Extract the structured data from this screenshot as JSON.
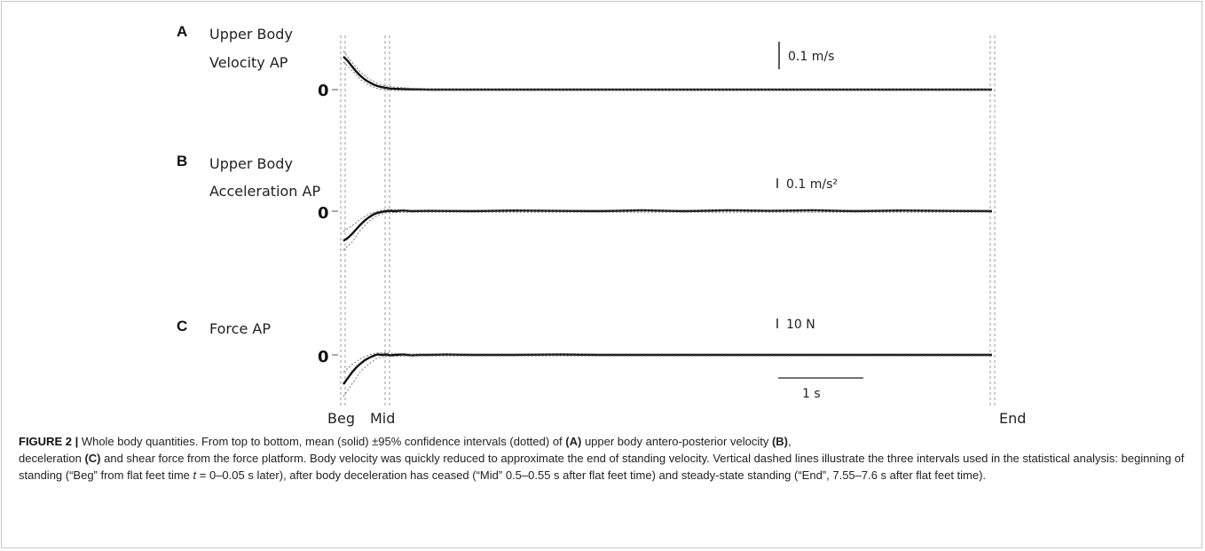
{
  "figure": {
    "x_markers": [
      "Beg",
      "Mid",
      "End"
    ],
    "zero_label": "0",
    "time_scalebar_label": "1 s"
  },
  "chart_data": [
    {
      "type": "line",
      "panel": "A",
      "title_lines": [
        "Upper Body",
        "Velocity AP"
      ],
      "scale_bar_label": "0.1 m/s",
      "x_unit": "s",
      "xlim": [
        0,
        7.6
      ],
      "series": [
        {
          "name": "",
          "style": "solid mean",
          "x": [
            0,
            0.05,
            0.1,
            0.15,
            0.2,
            0.25,
            0.3,
            0.35,
            0.4,
            0.45,
            0.5,
            0.55,
            0.6,
            0.7,
            0.8,
            0.9,
            1.0,
            1.5,
            2.0,
            3.0,
            4.0,
            5.0,
            6.0,
            7.0,
            7.6
          ],
          "y": [
            0.12,
            0.105,
            0.085,
            0.066,
            0.05,
            0.037,
            0.027,
            0.019,
            0.013,
            0.009,
            0.006,
            0.004,
            0.003,
            0.002,
            0.001,
            0.001,
            0.0,
            0.0,
            0.0,
            0.0,
            0.0,
            0.0,
            0.0,
            0.0,
            0.0
          ]
        },
        {
          "name": "",
          "style": "dotted 95% CI",
          "x": [
            0,
            0.1,
            0.2,
            0.3,
            0.4,
            0.5,
            0.6,
            0.8,
            1.0,
            7.6
          ],
          "y_upper": [
            0.14,
            0.1,
            0.064,
            0.038,
            0.022,
            0.013,
            0.009,
            0.005,
            0.003,
            0.003
          ],
          "y_lower": [
            0.1,
            0.07,
            0.036,
            0.016,
            0.004,
            -0.001,
            -0.003,
            -0.003,
            -0.003,
            -0.003
          ]
        }
      ]
    },
    {
      "type": "line",
      "panel": "B",
      "title_lines": [
        "Upper Body",
        "Acceleration AP"
      ],
      "scale_bar_label": "0.1 m/s²",
      "x_unit": "s",
      "xlim": [
        0,
        7.6
      ],
      "series": [
        {
          "name": "",
          "style": "solid mean",
          "x": [
            0,
            0.05,
            0.1,
            0.15,
            0.2,
            0.25,
            0.3,
            0.35,
            0.4,
            0.45,
            0.5,
            0.55,
            0.6,
            0.7,
            0.8,
            1.0,
            1.5,
            2.0,
            3.0,
            3.5,
            4.0,
            4.5,
            5.0,
            5.5,
            6.0,
            6.5,
            7.0,
            7.6
          ],
          "y": [
            -0.88,
            -0.8,
            -0.68,
            -0.54,
            -0.4,
            -0.28,
            -0.18,
            -0.1,
            -0.05,
            -0.02,
            0.0,
            0.01,
            0.0,
            0.02,
            0.0,
            0.01,
            0.0,
            0.02,
            0.0,
            0.03,
            0.0,
            0.03,
            0.01,
            0.03,
            0.0,
            0.02,
            0.01,
            0.0
          ]
        },
        {
          "name": "",
          "style": "dotted 95% CI",
          "x": [
            0,
            0.1,
            0.2,
            0.3,
            0.4,
            0.5,
            0.6,
            0.8,
            1.0,
            7.6
          ],
          "y_upper": [
            -0.6,
            -0.44,
            -0.24,
            -0.08,
            0.0,
            0.05,
            0.05,
            0.03,
            0.03,
            0.03
          ],
          "y_lower": [
            -1.15,
            -0.92,
            -0.56,
            -0.3,
            -0.12,
            -0.05,
            -0.04,
            -0.03,
            -0.03,
            -0.03
          ]
        }
      ]
    },
    {
      "type": "line",
      "panel": "C",
      "title_lines": [
        "Force AP"
      ],
      "scale_bar_label": "10 N",
      "x_unit": "s",
      "xlim": [
        0,
        7.6
      ],
      "series": [
        {
          "name": "",
          "style": "solid mean",
          "x": [
            0,
            0.05,
            0.1,
            0.15,
            0.2,
            0.25,
            0.3,
            0.35,
            0.4,
            0.45,
            0.5,
            0.55,
            0.6,
            0.7,
            0.8,
            0.9,
            1.0,
            1.2,
            1.5,
            2.0,
            2.5,
            3.0,
            4.0,
            5.0,
            6.0,
            7.0,
            7.6
          ],
          "y": [
            -60,
            -48,
            -36,
            -26,
            -18,
            -11,
            -6,
            -2,
            1,
            0,
            1,
            -1,
            0,
            1,
            -1,
            0,
            0,
            1,
            0,
            0,
            1,
            0,
            0,
            0,
            0,
            0,
            0
          ]
        },
        {
          "name": "",
          "style": "dotted 95% CI",
          "x": [
            0,
            0.1,
            0.2,
            0.3,
            0.4,
            0.5,
            0.6,
            0.8,
            1.0,
            7.6
          ],
          "y_upper": [
            -35,
            -20,
            -8,
            0,
            4,
            4,
            3,
            2,
            2,
            2
          ],
          "y_lower": [
            -85,
            -60,
            -34,
            -18,
            -6,
            -3,
            -3,
            -2,
            -2,
            -2
          ]
        }
      ]
    }
  ],
  "caption": {
    "label": "FIGURE 2 |",
    "text_part1": " Whole body quantities. From top to bottom, mean (solid) ±95% confidence intervals (dotted) of ",
    "label_a": "(A)",
    "text_part2": " upper body antero-posterior velocity ",
    "label_b": "(B)",
    "text_part3": ",",
    "text_part4": "deceleration ",
    "label_c": "(C)",
    "text_part5": " and shear force from the force platform. Body velocity was quickly reduced to approximate the end of standing velocity. Vertical dashed lines illustrate the three intervals used in the statistical analysis: beginning of standing (“Beg” from flat feet time ",
    "t_italic": "t",
    "text_part6": " = 0–0.05 s later), after body deceleration has ceased (“Mid” 0.5–0.55 s after flat feet time) and steady-state standing (“End”, 7.55–7.6 s after flat feet time)."
  }
}
